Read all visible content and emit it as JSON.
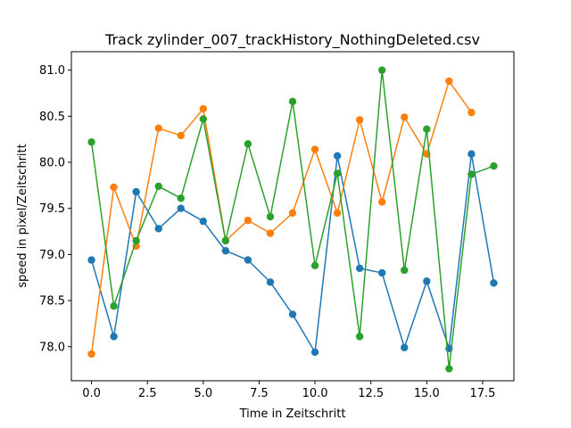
{
  "chart_data": {
    "type": "line",
    "title": "Track zylinder_007_trackHistory_NothingDeleted.csv",
    "xlabel": "Time in Zeitschritt",
    "ylabel": "speed in pixel/Zeitschritt",
    "xlim": [
      -0.9,
      18.9
    ],
    "ylim": [
      77.63,
      81.2
    ],
    "xticks": [
      0.0,
      2.5,
      5.0,
      7.5,
      10.0,
      12.5,
      15.0,
      17.5
    ],
    "xtick_labels": [
      "0.0",
      "2.5",
      "5.0",
      "7.5",
      "10.0",
      "12.5",
      "15.0",
      "17.5"
    ],
    "yticks": [
      78.0,
      78.5,
      79.0,
      79.5,
      80.0,
      80.5,
      81.0
    ],
    "ytick_labels": [
      "78.0",
      "78.5",
      "79.0",
      "79.5",
      "80.0",
      "80.5",
      "81.0"
    ],
    "grid": false,
    "markers": true,
    "series": [
      {
        "color": "#1f77b4",
        "x": [
          0,
          1,
          2,
          3,
          4,
          5,
          6,
          7,
          8,
          9,
          10,
          11,
          12,
          13,
          14,
          15,
          16,
          17,
          18
        ],
        "y": [
          78.94,
          78.11,
          79.68,
          79.28,
          79.5,
          79.36,
          79.04,
          78.94,
          78.7,
          78.35,
          77.94,
          80.07,
          78.85,
          78.8,
          77.99,
          78.71,
          77.98,
          80.09,
          78.69
        ]
      },
      {
        "color": "#ff7f0e",
        "x": [
          0,
          1,
          2,
          3,
          4,
          5,
          6,
          7,
          8,
          9,
          10,
          11,
          12,
          13,
          14,
          15,
          16,
          17
        ],
        "y": [
          77.92,
          79.73,
          79.09,
          80.37,
          80.29,
          80.58,
          79.15,
          79.37,
          79.23,
          79.45,
          80.14,
          79.45,
          80.46,
          79.57,
          80.49,
          80.09,
          80.88,
          80.54
        ]
      },
      {
        "color": "#2ca02c",
        "x": [
          0,
          1,
          2,
          3,
          4,
          5,
          6,
          7,
          8,
          9,
          10,
          11,
          12,
          13,
          14,
          15,
          16,
          17,
          18
        ],
        "y": [
          80.22,
          78.44,
          79.15,
          79.74,
          79.61,
          80.47,
          79.15,
          80.2,
          79.41,
          80.66,
          78.88,
          79.88,
          78.11,
          81.0,
          78.83,
          80.36,
          77.76,
          79.87,
          79.96
        ]
      }
    ]
  }
}
